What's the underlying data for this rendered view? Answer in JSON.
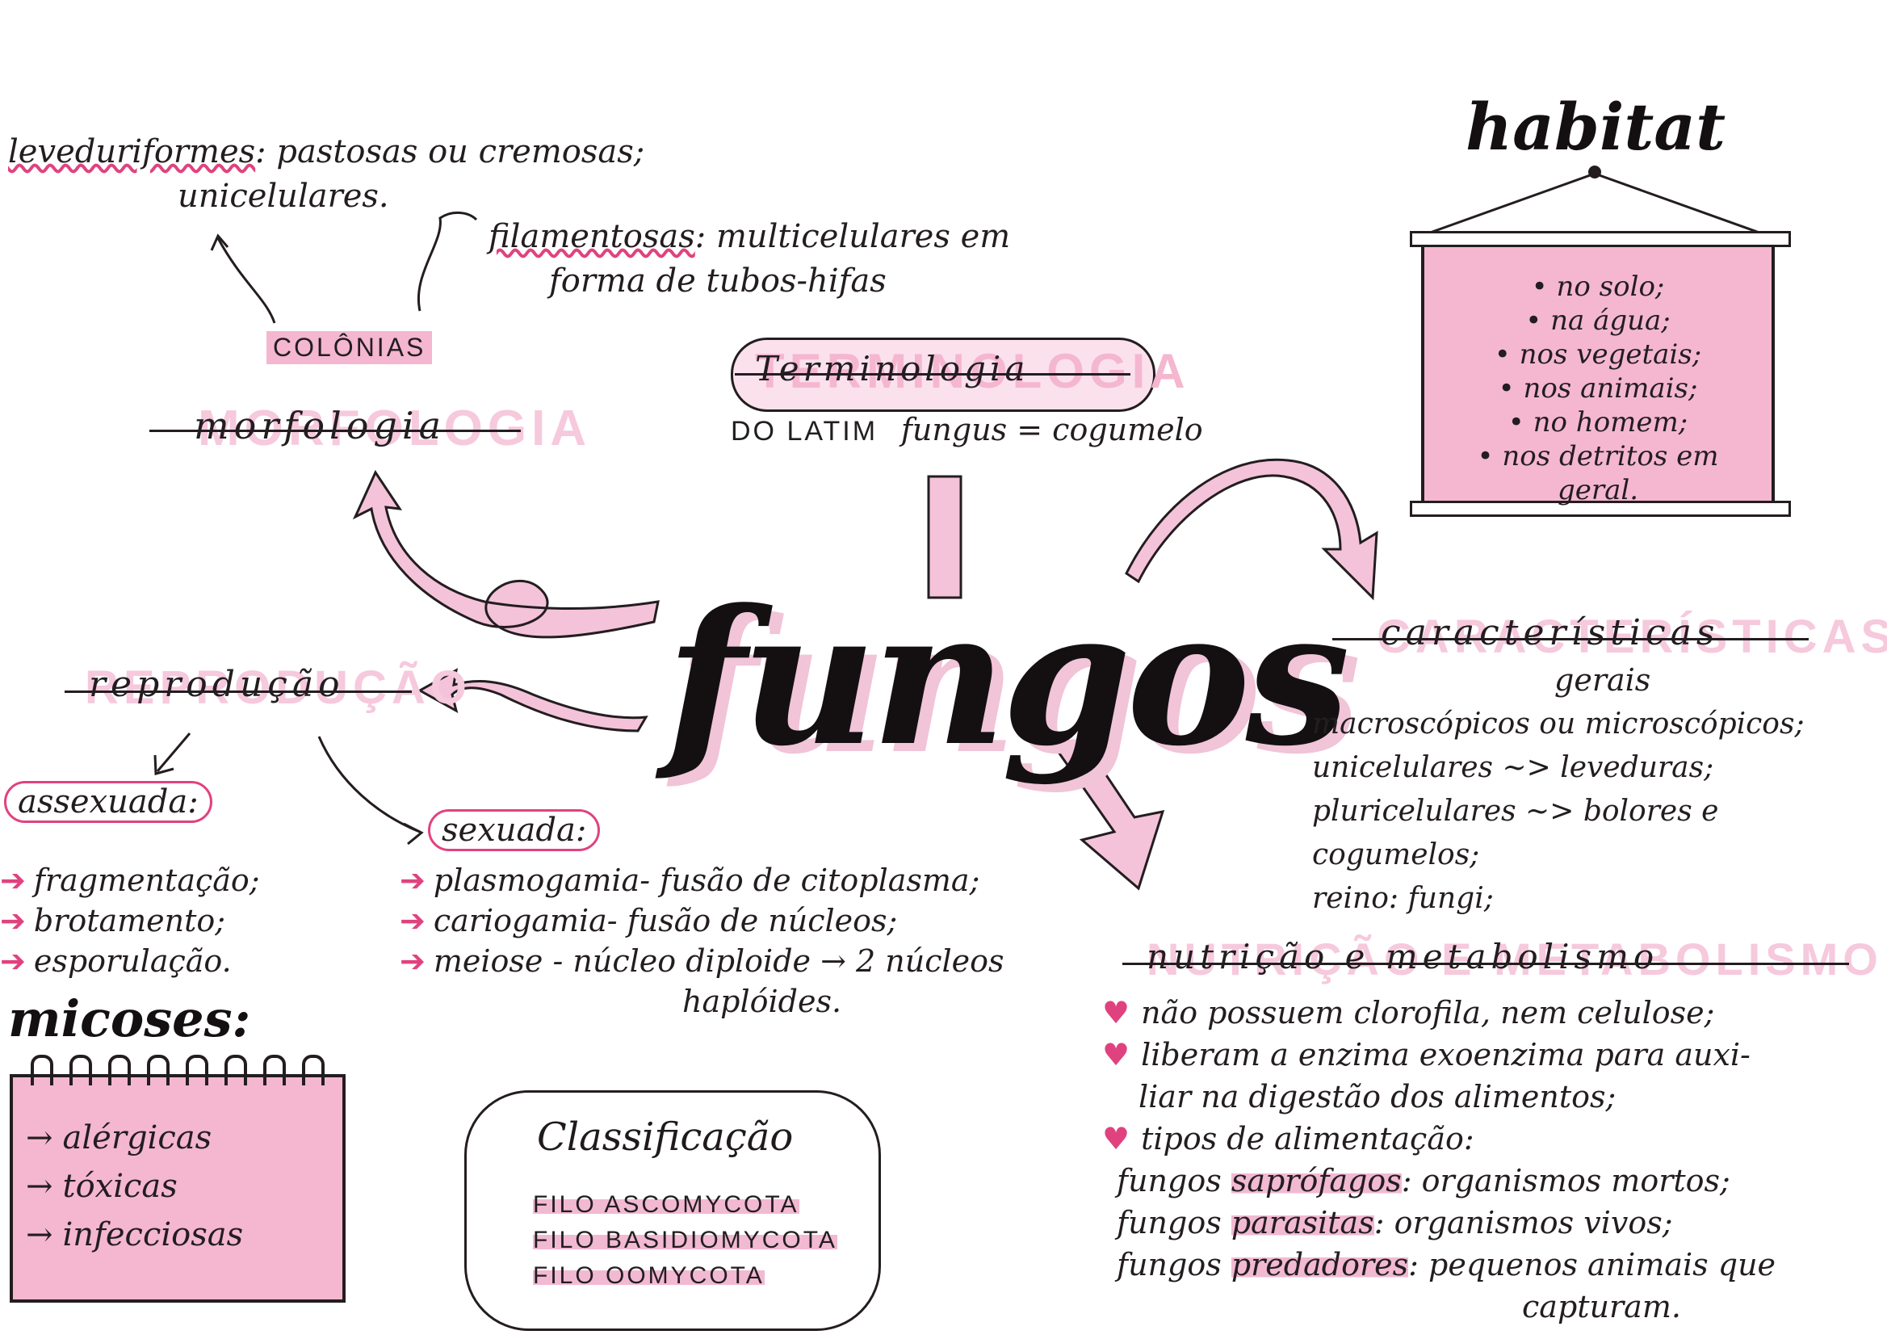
{
  "colors": {
    "accent_pink": "#f2b9d3",
    "ink": "#231d20",
    "heart": "#e0427f"
  },
  "title": "fungos",
  "morfologia": {
    "heading": "morfologia",
    "colonias_label": "COLÔNIAS",
    "leveduriformes_term": "leveduriformes",
    "leveduriformes_desc": ": pastosas ou cremosas;",
    "leveduriformes_desc2": "unicelulares.",
    "filamentosas_term": "filamentosas",
    "filamentosas_desc": ": multicelulares em",
    "filamentosas_desc2": "forma de tubos-hifas"
  },
  "terminologia": {
    "heading": "Terminologia",
    "latim_label": "DO LATIM",
    "latim_text": "fungus = cogumelo"
  },
  "habitat": {
    "heading": "habitat",
    "items": [
      "• no solo;",
      "• na água;",
      "• nos vegetais;",
      "• nos animais;",
      "• no homem;",
      "• nos detritos em",
      "geral."
    ]
  },
  "caracteristicas": {
    "heading": "características",
    "subheading": "gerais",
    "lines": [
      "macroscópicos ou microscópicos;",
      "unicelulares ~> leveduras;",
      "pluricelulares ~> bolores e cogumelos;",
      "reino: fungi;"
    ]
  },
  "reproducao": {
    "heading": "reprodução",
    "assexuada": {
      "label": "assexuada:",
      "items": [
        "fragmentação;",
        "brotamento;",
        "esporulação."
      ]
    },
    "sexuada": {
      "label": "sexuada:",
      "items": [
        "plasmogamia- fusão de citoplasma;",
        "cariogamia- fusão de núcleos;",
        "meiose - núcleo diploide → 2 núcleos"
      ],
      "continuation": "haplóides."
    }
  },
  "micoses": {
    "heading": "micoses:",
    "items": [
      "alérgicas",
      "tóxicas",
      "infecciosas"
    ]
  },
  "classificacao": {
    "heading": "Classificação",
    "items": [
      "FILO ASCOMYCOTA",
      "FILO BASIDIOMYCOTA",
      "FILO OOMYCOTA"
    ]
  },
  "nutricao": {
    "heading": "nutrição e metabolismo",
    "bullets": [
      "não possuem clorofila, nem celulose;",
      "liberam a enzima exoenzima para auxi-",
      "tipos de alimentação:"
    ],
    "bullet2_cont": "liar na digestão dos alimentos;",
    "types": [
      {
        "prefix": "fungos",
        "term": "saprófagos",
        "desc": ": organismos mortos;"
      },
      {
        "prefix": "fungos",
        "term": "parasitas",
        "desc": ": organismos vivos;"
      },
      {
        "prefix": "fungos",
        "term": "predadores",
        "desc": ": pequenos animais que"
      }
    ],
    "last_cont": "capturam."
  }
}
